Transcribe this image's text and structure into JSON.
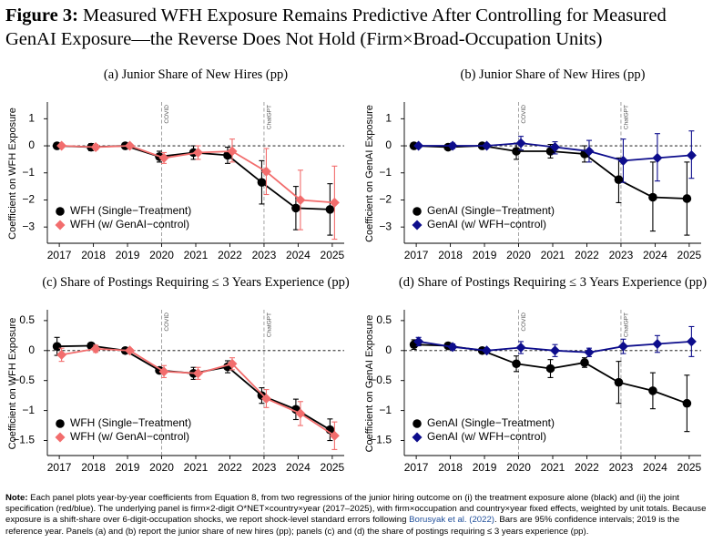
{
  "figure": {
    "label": "Figure 3:",
    "title": "Measured WFH Exposure Remains Predictive After Controlling for Measured GenAI Exposure—the Reverse Does Not Hold (Firm×Broad-Occupation Units)"
  },
  "note": {
    "label": "Note:",
    "text_1": " Each panel plots year-by-year coefficients from Equation 8, from two regressions of the junior hiring outcome on (i) the treatment exposure alone (black) and (ii) the joint specification (red/blue). The underlying panel is firm×2-digit O*NET×country×year (2017–2025), with firm×occupation and country×year fixed effects, weighted by unit totals. Because exposure is a shift-share over 6-digit-occupation shocks, we report shock-level standard errors following ",
    "citation": "Borusyak et al. (2022)",
    "text_2": ". Bars are 95% confidence intervals; 2019 is the reference year. Panels (a) and (b) report the junior share of new hires (pp); panels (c) and (d) the share of postings requiring ≤ 3 years experience (pp)."
  },
  "colors": {
    "black": "#000000",
    "red": "#f26d6d",
    "blue": "#0d0d8c",
    "vline": "#8c8c8c"
  },
  "chart_data": [
    {
      "id": "a",
      "type": "line",
      "title": "(a) Junior Share of New Hires (pp)",
      "ylabel": "Coefficient on WFH Exposure",
      "x": [
        2017,
        2018,
        2019,
        2020,
        2021,
        2022,
        2023,
        2024,
        2025
      ],
      "ylim": [
        -3.6,
        1.55
      ],
      "yticks": [
        1,
        0,
        -1,
        -2,
        -3
      ],
      "ytick_labels": [
        "1",
        "0",
        "−1",
        "−2",
        "−3"
      ],
      "vlines": [
        {
          "x": 2020,
          "label": "COVID"
        },
        {
          "x": 2023,
          "label": "ChatGPT"
        }
      ],
      "legend_position": "bottom-left",
      "series": [
        {
          "name": "WFH (Single−Treatment)",
          "color": "#000000",
          "marker": "circle",
          "y": [
            0,
            -0.05,
            0,
            -0.4,
            -0.25,
            -0.35,
            -1.35,
            -2.3,
            -2.35
          ],
          "ci_low": [
            0,
            -0.18,
            0,
            -0.6,
            -0.5,
            -0.65,
            -2.15,
            -3.1,
            -3.3
          ],
          "ci_high": [
            0,
            0.08,
            0,
            -0.2,
            0,
            -0.05,
            -0.55,
            -1.5,
            -1.4
          ]
        },
        {
          "name": "WFH (w/ GenAI−control)",
          "color": "#f26d6d",
          "marker": "diamond",
          "y": [
            0,
            -0.05,
            0,
            -0.45,
            -0.25,
            -0.2,
            -0.95,
            -2.0,
            -2.1
          ],
          "ci_low": [
            0,
            -0.15,
            0,
            -0.65,
            -0.5,
            -0.6,
            -1.8,
            -3.1,
            -3.45
          ],
          "ci_high": [
            0,
            0.05,
            0,
            -0.25,
            0,
            0.25,
            -0.1,
            -0.9,
            -0.75
          ]
        }
      ]
    },
    {
      "id": "b",
      "type": "line",
      "title": "(b) Junior Share of New Hires (pp)",
      "ylabel": "Coefficient on GenAI Exposure",
      "x": [
        2017,
        2018,
        2019,
        2020,
        2021,
        2022,
        2023,
        2024,
        2025
      ],
      "ylim": [
        -3.6,
        1.55
      ],
      "yticks": [
        1,
        0,
        -1,
        -2,
        -3
      ],
      "ytick_labels": [
        "1",
        "0",
        "−1",
        "−2",
        "−3"
      ],
      "vlines": [
        {
          "x": 2020,
          "label": "COVID"
        },
        {
          "x": 2023,
          "label": "ChatGPT"
        }
      ],
      "legend_position": "bottom-left",
      "series": [
        {
          "name": "GenAI (Single−Treatment)",
          "color": "#000000",
          "marker": "circle",
          "y": [
            0,
            -0.05,
            0,
            -0.2,
            -0.2,
            -0.3,
            -1.25,
            -1.9,
            -1.95
          ],
          "ci_low": [
            0,
            -0.15,
            0,
            -0.5,
            -0.45,
            -0.6,
            -2.1,
            -3.15,
            -3.3
          ],
          "ci_high": [
            0,
            0.05,
            0,
            0.1,
            0.05,
            0,
            -0.45,
            -0.6,
            -0.6
          ]
        },
        {
          "name": "GenAI (w/ WFH−control)",
          "color": "#0d0d8c",
          "marker": "diamond",
          "y": [
            0,
            0,
            0,
            0.1,
            -0.05,
            -0.2,
            -0.55,
            -0.45,
            -0.35
          ],
          "ci_low": [
            0,
            -0.1,
            0,
            -0.15,
            -0.3,
            -0.6,
            -1.35,
            -1.3,
            -1.2
          ],
          "ci_high": [
            0,
            0.1,
            0,
            0.35,
            0.15,
            0.2,
            0.25,
            0.45,
            0.55
          ]
        }
      ]
    },
    {
      "id": "c",
      "type": "line",
      "title": "(c) Share of Postings Requiring ≤ 3 Years Experience (pp)",
      "ylabel": "Coefficient on WFH Exposure",
      "x": [
        2017,
        2018,
        2019,
        2020,
        2021,
        2022,
        2023,
        2024,
        2025
      ],
      "ylim": [
        -1.75,
        0.65
      ],
      "yticks": [
        0.5,
        0,
        -0.5,
        -1,
        -1.5
      ],
      "ytick_labels": [
        "0.5",
        "0",
        "−0.5",
        "−1",
        "−1.5"
      ],
      "vlines": [
        {
          "x": 2020,
          "label": "COVID"
        },
        {
          "x": 2023,
          "label": "ChatGPT"
        }
      ],
      "legend_position": "bottom-left",
      "series": [
        {
          "name": "WFH (Single−Treatment)",
          "color": "#000000",
          "marker": "circle",
          "y": [
            0.07,
            0.08,
            0,
            -0.33,
            -0.38,
            -0.27,
            -0.75,
            -0.98,
            -1.32
          ],
          "ci_low": [
            -0.08,
            0.03,
            0,
            -0.38,
            -0.48,
            -0.37,
            -0.88,
            -1.15,
            -1.5
          ],
          "ci_high": [
            0.22,
            0.13,
            0,
            -0.28,
            -0.28,
            -0.17,
            -0.62,
            -0.81,
            -1.14
          ]
        },
        {
          "name": "WFH (w/ GenAI−control)",
          "color": "#f26d6d",
          "marker": "diamond",
          "y": [
            -0.07,
            0.03,
            0,
            -0.35,
            -0.38,
            -0.22,
            -0.8,
            -1.05,
            -1.42
          ],
          "ci_low": [
            -0.18,
            -0.03,
            0,
            -0.45,
            -0.48,
            -0.32,
            -0.95,
            -1.25,
            -1.65
          ],
          "ci_high": [
            0.04,
            0.09,
            0,
            -0.25,
            -0.28,
            -0.12,
            -0.65,
            -0.85,
            -1.19
          ]
        }
      ]
    },
    {
      "id": "d",
      "type": "line",
      "title": "(d) Share of Postings Requiring ≤ 3 Years Experience (pp)",
      "ylabel": "Coefficient on GenAI Exposure",
      "x": [
        2017,
        2018,
        2019,
        2020,
        2021,
        2022,
        2023,
        2024,
        2025
      ],
      "ylim": [
        -1.75,
        0.65
      ],
      "yticks": [
        0.5,
        0,
        -0.5,
        -1,
        -1.5
      ],
      "ytick_labels": [
        "0.5",
        "0",
        "−0.5",
        "−1",
        "−1.5"
      ],
      "vlines": [
        {
          "x": 2020,
          "label": "COVID"
        },
        {
          "x": 2023,
          "label": "ChatGPT"
        }
      ],
      "legend_position": "bottom-left",
      "series": [
        {
          "name": "GenAI (Single−Treatment)",
          "color": "#000000",
          "marker": "circle",
          "y": [
            0.1,
            0.08,
            0,
            -0.22,
            -0.3,
            -0.2,
            -0.53,
            -0.67,
            -0.88
          ],
          "ci_low": [
            0.02,
            0.03,
            0,
            -0.35,
            -0.45,
            -0.28,
            -0.88,
            -0.97,
            -1.35
          ],
          "ci_high": [
            0.18,
            0.13,
            0,
            -0.09,
            -0.15,
            -0.12,
            -0.18,
            -0.37,
            -0.41
          ]
        },
        {
          "name": "GenAI (w/ WFH−control)",
          "color": "#0d0d8c",
          "marker": "diamond",
          "y": [
            0.15,
            0.06,
            0,
            0.05,
            0,
            -0.03,
            0.07,
            0.11,
            0.15
          ],
          "ci_low": [
            0.08,
            0.01,
            0,
            -0.05,
            -0.1,
            -0.1,
            -0.05,
            -0.03,
            -0.1
          ],
          "ci_high": [
            0.22,
            0.11,
            0,
            0.15,
            0.1,
            0.04,
            0.19,
            0.25,
            0.4
          ]
        }
      ]
    }
  ]
}
